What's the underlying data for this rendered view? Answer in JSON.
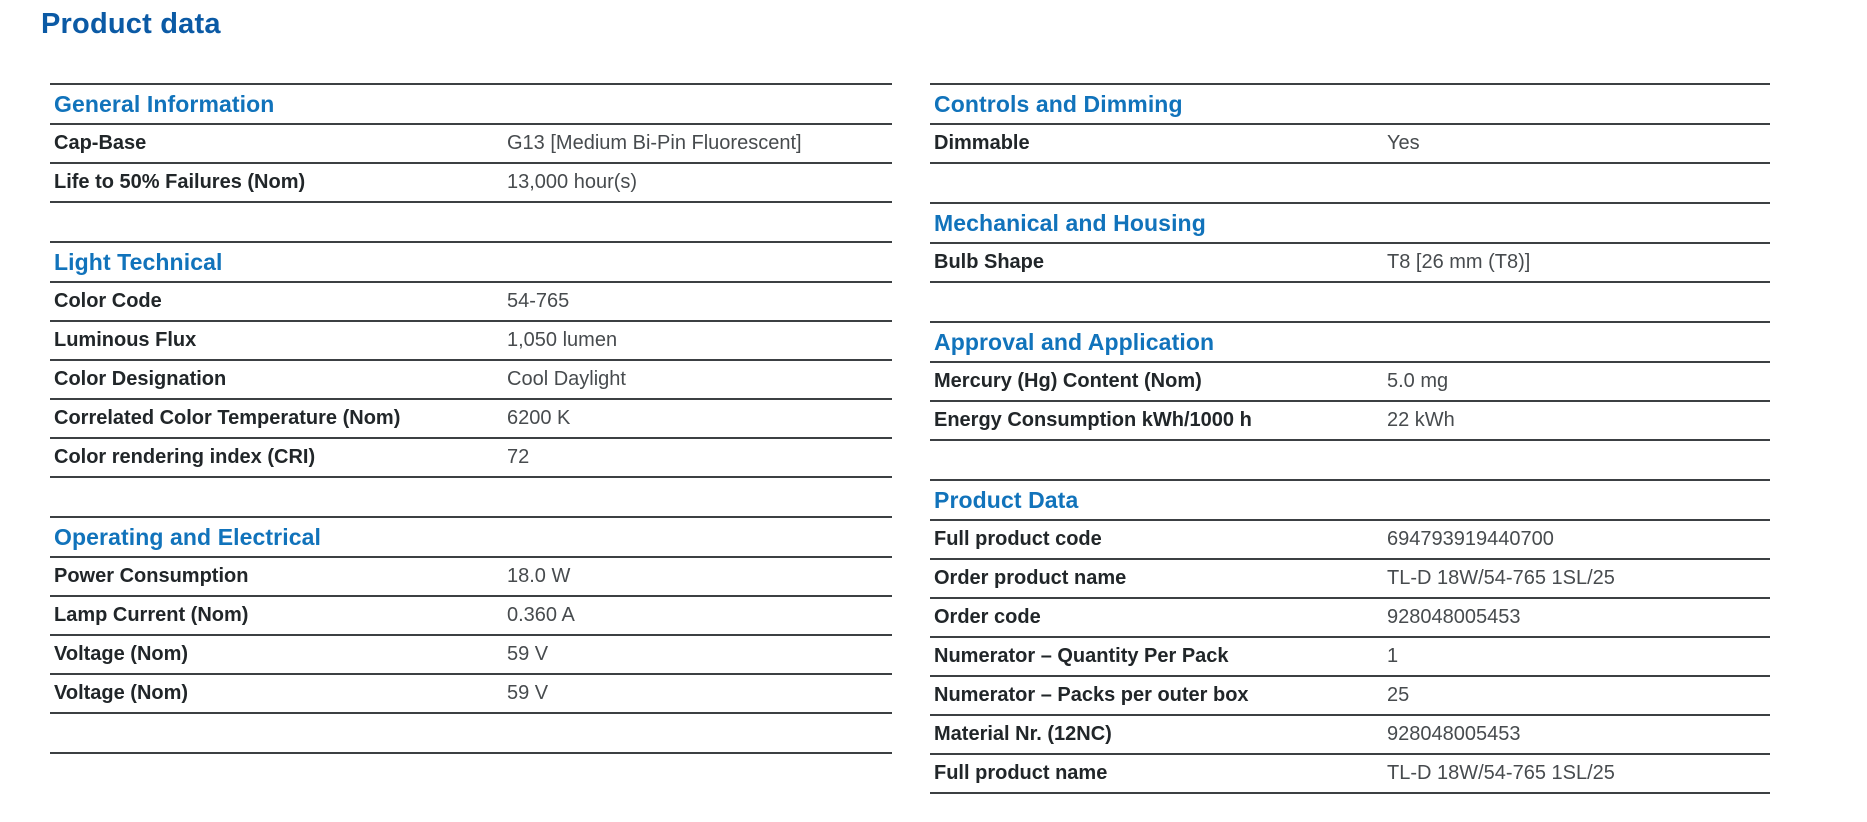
{
  "page": {
    "title": "Product data"
  },
  "colors": {
    "title_blue": "#0b5aa5",
    "heading_blue": "#1173bb",
    "label": "#212629",
    "value": "#474b4e",
    "rule": "#3c4043",
    "background": "#ffffff"
  },
  "columns": [
    {
      "name": "left",
      "trailing_rule": true,
      "sections": [
        {
          "title": "General Information",
          "rows": [
            {
              "label": "Cap-Base",
              "value": "G13 [Medium Bi-Pin Fluorescent]"
            },
            {
              "label": "Life to 50% Failures (Nom)",
              "value": "13,000 hour(s)"
            }
          ]
        },
        {
          "title": "Light Technical",
          "rows": [
            {
              "label": "Color Code",
              "value": "54-765"
            },
            {
              "label": "Luminous Flux",
              "value": "1,050 lumen"
            },
            {
              "label": "Color Designation",
              "value": "Cool Daylight"
            },
            {
              "label": "Correlated Color Temperature (Nom)",
              "value": "6200 K"
            },
            {
              "label": "Color rendering index (CRI)",
              "value": "72"
            }
          ]
        },
        {
          "title": "Operating and Electrical",
          "rows": [
            {
              "label": "Power Consumption",
              "value": "18.0 W"
            },
            {
              "label": "Lamp Current (Nom)",
              "value": "0.360 A"
            },
            {
              "label": "Voltage (Nom)",
              "value": "59 V"
            },
            {
              "label": "Voltage (Nom)",
              "value": "59 V"
            }
          ]
        }
      ]
    },
    {
      "name": "right",
      "trailing_rule": false,
      "sections": [
        {
          "title": "Controls and Dimming",
          "rows": [
            {
              "label": "Dimmable",
              "value": "Yes"
            }
          ]
        },
        {
          "title": "Mechanical and Housing",
          "rows": [
            {
              "label": "Bulb Shape",
              "value": "T8 [26 mm (T8)]"
            }
          ]
        },
        {
          "title": "Approval and Application",
          "rows": [
            {
              "label": "Mercury (Hg) Content (Nom)",
              "value": "5.0 mg"
            },
            {
              "label": "Energy Consumption kWh/1000 h",
              "value": "22 kWh"
            }
          ]
        },
        {
          "title": "Product Data",
          "rows": [
            {
              "label": "Full product code",
              "value": "694793919440700"
            },
            {
              "label": "Order product name",
              "value": "TL-D 18W/54-765 1SL/25"
            },
            {
              "label": "Order code",
              "value": "928048005453"
            },
            {
              "label": "Numerator – Quantity Per Pack",
              "value": "1"
            },
            {
              "label": "Numerator – Packs per outer box",
              "value": "25"
            },
            {
              "label": "Material Nr. (12NC)",
              "value": "928048005453"
            },
            {
              "label": "Full product name",
              "value": "TL-D 18W/54-765 1SL/25"
            }
          ]
        }
      ]
    }
  ]
}
